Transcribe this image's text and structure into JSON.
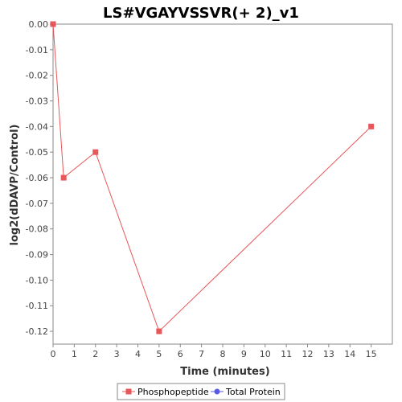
{
  "chart_data": {
    "type": "line",
    "title": "LS#VGAYVSSVR(+ 2)_v1",
    "xlabel": "Time (minutes)",
    "ylabel": "log2(dDAVP/Control)",
    "xlim": [
      0,
      16
    ],
    "ylim": [
      -0.125,
      0.0
    ],
    "x_ticks": [
      0,
      1,
      2,
      3,
      4,
      5,
      6,
      7,
      8,
      9,
      10,
      11,
      12,
      13,
      14,
      15
    ],
    "y_ticks": [
      0.0,
      -0.01,
      -0.02,
      -0.03,
      -0.04,
      -0.05,
      -0.06,
      -0.07,
      -0.08,
      -0.09,
      -0.1,
      -0.11,
      -0.12
    ],
    "y_tick_labels": [
      "0.00",
      "-0.01",
      "-0.02",
      "-0.03",
      "-0.04",
      "-0.05",
      "-0.06",
      "-0.07",
      "-0.08",
      "-0.09",
      "-0.10",
      "-0.11",
      "-0.12"
    ],
    "grid": false,
    "legend_position": "bottom",
    "series": [
      {
        "name": "Phosphopeptide",
        "color": "#e8575a",
        "marker": "square",
        "x": [
          0,
          0.5,
          2,
          5,
          15
        ],
        "y": [
          0.0,
          -0.06,
          -0.05,
          -0.12,
          -0.04
        ]
      },
      {
        "name": "Total Protein",
        "color": "#5a5ae8",
        "marker": "circle",
        "x": [],
        "y": []
      }
    ]
  }
}
